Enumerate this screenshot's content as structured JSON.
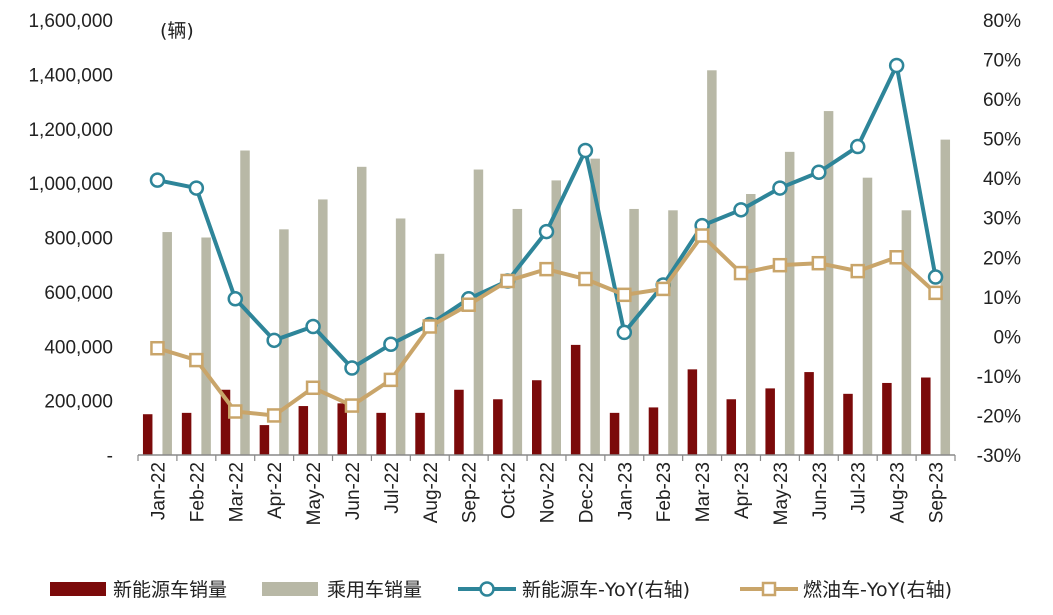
{
  "chart_data": {
    "type": "bar",
    "unit_label": "(辆)",
    "categories": [
      "Jan-22",
      "Feb-22",
      "Mar-22",
      "Apr-22",
      "May-22",
      "Jun-22",
      "Jul-22",
      "Aug-22",
      "Sep-22",
      "Oct-22",
      "Nov-22",
      "Dec-22",
      "Jan-23",
      "Feb-23",
      "Mar-23",
      "Apr-23",
      "May-23",
      "Jun-23",
      "Jul-23",
      "Aug-23",
      "Sep-23"
    ],
    "y_left": {
      "min": 0,
      "max": 1600000,
      "step": 200000,
      "tick_labels": [
        "-",
        "200,000",
        "400,000",
        "600,000",
        "800,000",
        "1,000,000",
        "1,200,000",
        "1,400,000",
        "1,600,000"
      ]
    },
    "y_right": {
      "min": -30,
      "max": 80,
      "step": 10,
      "tick_labels": [
        "-30%",
        "-20%",
        "-10%",
        "0%",
        "10%",
        "20%",
        "30%",
        "40%",
        "50%",
        "60%",
        "70%",
        "80%"
      ]
    },
    "grid": false,
    "legend_position": "bottom",
    "series": [
      {
        "name": "新能源车销量",
        "type": "bar",
        "axis": "left",
        "color": "#7b0a0a",
        "values": [
          150000,
          155000,
          240000,
          110000,
          180000,
          190000,
          155000,
          155000,
          240000,
          205000,
          275000,
          405000,
          155000,
          175000,
          315000,
          205000,
          245000,
          305000,
          225000,
          265000,
          285000
        ]
      },
      {
        "name": "乘用车销量",
        "type": "bar",
        "axis": "left",
        "color": "#b8b8a6",
        "values": [
          820000,
          800000,
          1120000,
          830000,
          940000,
          1060000,
          870000,
          740000,
          1050000,
          905000,
          1010000,
          1090000,
          905000,
          900000,
          1415000,
          960000,
          1115000,
          1265000,
          1020000,
          900000,
          1160000
        ]
      },
      {
        "name": "新能源车-YoY(右轴)",
        "type": "line",
        "axis": "right",
        "color": "#2e8599",
        "marker": "circle",
        "values": [
          39.5,
          37.5,
          9.5,
          -1,
          2.5,
          -8,
          -2,
          3,
          9.5,
          14,
          26.5,
          47,
          1,
          13,
          28,
          32,
          37.5,
          41.5,
          48,
          68.5,
          15
        ]
      },
      {
        "name": "燃油车-YoY(右轴)",
        "type": "line",
        "axis": "right",
        "color": "#c9a56a",
        "marker": "square",
        "values": [
          -3,
          -6,
          -19,
          -20,
          -13,
          -17.5,
          -11,
          2.5,
          8,
          14,
          17,
          14.5,
          10.5,
          12,
          25.5,
          16,
          18,
          18.5,
          16.5,
          20,
          11
        ]
      }
    ]
  }
}
